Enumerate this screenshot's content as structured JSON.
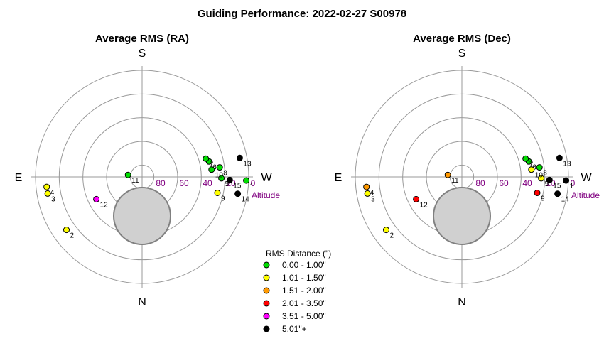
{
  "title": "Guiding Performance: 2022-02-27 S00978",
  "chart_data": [
    {
      "type": "scatter",
      "projection": "polar-altaz",
      "title": "Average RMS (RA)",
      "cardinals": {
        "S": "S",
        "N": "N",
        "E": "E",
        "W": "W"
      },
      "altitude_ticks": [
        "80",
        "60",
        "40",
        "20",
        "0"
      ],
      "altitude_label": "Altitude",
      "points": [
        {
          "id": "1",
          "az": 268,
          "alt": 2,
          "color": "#00dd00"
        },
        {
          "id": "2",
          "az": 125,
          "alt": 12,
          "color": "#ffff00"
        },
        {
          "id": "3",
          "az": 100,
          "alt": 9,
          "color": "#ffff00"
        },
        {
          "id": "4",
          "az": 96,
          "alt": 9,
          "color": "#ffff00"
        },
        {
          "id": "5",
          "az": 269,
          "alt": 23,
          "color": "#00dd00"
        },
        {
          "id": "6",
          "az": 283,
          "alt": 32,
          "color": "#00dd00"
        },
        {
          "id": "7",
          "az": 286,
          "alt": 34,
          "color": "#00dd00"
        },
        {
          "id": "8",
          "az": 277,
          "alt": 24,
          "color": "#00dd00"
        },
        {
          "id": "9",
          "az": 258,
          "alt": 25,
          "color": "#ffff00"
        },
        {
          "id": "10",
          "az": 276,
          "alt": 31,
          "color": "#00dd00"
        },
        {
          "id": "11",
          "az": 82,
          "alt": 78,
          "color": "#00dd00"
        },
        {
          "id": "12",
          "az": 116,
          "alt": 47,
          "color": "#ff00ff"
        },
        {
          "id": "13",
          "az": 281,
          "alt": 6,
          "color": "#000000"
        },
        {
          "id": "14",
          "az": 260,
          "alt": 8,
          "color": "#000000"
        },
        {
          "id": "15",
          "az": 268,
          "alt": 16,
          "color": "#000000"
        }
      ]
    },
    {
      "type": "scatter",
      "projection": "polar-altaz",
      "title": "Average RMS (Dec)",
      "cardinals": {
        "S": "S",
        "N": "N",
        "E": "E",
        "W": "W"
      },
      "altitude_ticks": [
        "80",
        "60",
        "40",
        "20",
        "0"
      ],
      "altitude_label": "Altitude",
      "points": [
        {
          "id": "1",
          "az": 268,
          "alt": 2,
          "color": "#000000"
        },
        {
          "id": "2",
          "az": 125,
          "alt": 12,
          "color": "#ffff00"
        },
        {
          "id": "3",
          "az": 100,
          "alt": 9,
          "color": "#ffff00"
        },
        {
          "id": "4",
          "az": 96,
          "alt": 9,
          "color": "#ff9900"
        },
        {
          "id": "5",
          "az": 269,
          "alt": 23,
          "color": "#ffff00"
        },
        {
          "id": "6",
          "az": 283,
          "alt": 32,
          "color": "#00dd00"
        },
        {
          "id": "7",
          "az": 286,
          "alt": 34,
          "color": "#00dd00"
        },
        {
          "id": "8",
          "az": 277,
          "alt": 24,
          "color": "#00dd00"
        },
        {
          "id": "9",
          "az": 258,
          "alt": 25,
          "color": "#ff0000"
        },
        {
          "id": "10",
          "az": 276,
          "alt": 31,
          "color": "#ffff00"
        },
        {
          "id": "11",
          "az": 82,
          "alt": 78,
          "color": "#ff9900"
        },
        {
          "id": "12",
          "az": 116,
          "alt": 47,
          "color": "#ff0000"
        },
        {
          "id": "13",
          "az": 281,
          "alt": 6,
          "color": "#000000"
        },
        {
          "id": "14",
          "az": 260,
          "alt": 8,
          "color": "#000000"
        },
        {
          "id": "15",
          "az": 268,
          "alt": 16,
          "color": "#000000"
        }
      ]
    }
  ],
  "legend": {
    "title": "RMS Distance (\")",
    "items": [
      {
        "label": "0.00 - 1.00\"",
        "color": "#00dd00"
      },
      {
        "label": "1.01 - 1.50\"",
        "color": "#ffff00"
      },
      {
        "label": "1.51 - 2.00\"",
        "color": "#ff9900"
      },
      {
        "label": "2.01 - 3.50\"",
        "color": "#ff0000"
      },
      {
        "label": "3.51 - 5.00\"",
        "color": "#ff00ff"
      },
      {
        "label": "5.01\"+",
        "color": "#000000"
      }
    ]
  },
  "colors": {
    "ring": "#999999",
    "axis": "#999999",
    "obstruction_fill": "#d0d0d0",
    "obstruction_stroke": "#808080",
    "altitude_text": "#800080"
  }
}
